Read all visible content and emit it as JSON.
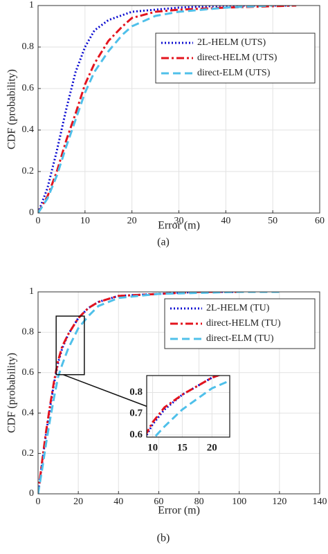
{
  "chart_data": [
    {
      "type": "line",
      "caption": "(a)",
      "xlabel": "Error (m)",
      "ylabel": "CDF (probability)",
      "xlim": [
        0,
        60
      ],
      "xticks": [
        0,
        10,
        20,
        30,
        40,
        50,
        60
      ],
      "ylim": [
        0,
        1
      ],
      "yticks": [
        0,
        0.2,
        0.4,
        0.6,
        0.8,
        1
      ],
      "grid": true,
      "legend": "upper right",
      "series": [
        {
          "name": "2L-HELM (UTS)",
          "color": "#0a0ad0",
          "style": "dotted",
          "x": [
            0,
            2,
            4,
            6,
            8,
            10,
            12,
            15,
            20,
            25,
            30,
            40,
            55
          ],
          "values": [
            0,
            0.12,
            0.3,
            0.5,
            0.68,
            0.8,
            0.88,
            0.93,
            0.97,
            0.98,
            0.99,
            1,
            1
          ]
        },
        {
          "name": "direct-HELM (UTS)",
          "color": "#e3141e",
          "style": "dashdot",
          "x": [
            0,
            2,
            4,
            6,
            8,
            10,
            12,
            15,
            18,
            20,
            25,
            30,
            40,
            55
          ],
          "values": [
            0,
            0.08,
            0.2,
            0.35,
            0.48,
            0.62,
            0.72,
            0.83,
            0.9,
            0.94,
            0.97,
            0.98,
            0.99,
            1
          ]
        },
        {
          "name": "direct-ELM (UTS)",
          "color": "#4fc0ea",
          "style": "dashed",
          "x": [
            0,
            2,
            4,
            6,
            8,
            10,
            12,
            15,
            18,
            20,
            25,
            30,
            40,
            50
          ],
          "values": [
            0,
            0.07,
            0.18,
            0.32,
            0.45,
            0.58,
            0.68,
            0.78,
            0.86,
            0.9,
            0.95,
            0.97,
            0.99,
            1
          ]
        }
      ]
    },
    {
      "type": "line",
      "caption": "(b)",
      "xlabel": "Error (m)",
      "ylabel": "CDF (probability)",
      "xlim": [
        0,
        140
      ],
      "xticks": [
        0,
        20,
        40,
        60,
        80,
        100,
        120,
        140
      ],
      "ylim": [
        0,
        1
      ],
      "yticks": [
        0,
        0.2,
        0.4,
        0.6,
        0.8,
        1
      ],
      "grid": true,
      "legend": "upper right",
      "series": [
        {
          "name": "2L-HELM (TU)",
          "color": "#0a0ad0",
          "style": "dotted",
          "x": [
            0,
            2,
            4,
            6,
            8,
            10,
            12,
            15,
            20,
            25,
            30,
            40,
            60,
            80,
            100
          ],
          "values": [
            0,
            0.15,
            0.3,
            0.43,
            0.55,
            0.65,
            0.72,
            0.79,
            0.87,
            0.92,
            0.95,
            0.98,
            0.99,
            1,
            1
          ]
        },
        {
          "name": "direct-HELM (TU)",
          "color": "#e3141e",
          "style": "dashdot",
          "x": [
            0,
            2,
            4,
            6,
            8,
            10,
            12,
            15,
            20,
            25,
            30,
            40,
            60,
            80,
            100
          ],
          "values": [
            0,
            0.16,
            0.31,
            0.44,
            0.56,
            0.66,
            0.73,
            0.79,
            0.87,
            0.92,
            0.95,
            0.98,
            0.99,
            1,
            1
          ]
        },
        {
          "name": "direct-ELM (TU)",
          "color": "#4fc0ea",
          "style": "dashed",
          "x": [
            0,
            2,
            4,
            6,
            8,
            10,
            12,
            15,
            20,
            25,
            30,
            40,
            60,
            80,
            100,
            120
          ],
          "values": [
            0,
            0.12,
            0.25,
            0.37,
            0.48,
            0.58,
            0.64,
            0.72,
            0.82,
            0.88,
            0.93,
            0.97,
            0.99,
            0.995,
            1,
            1
          ]
        }
      ],
      "inset": {
        "xlim": [
          9,
          23
        ],
        "xticks": [
          10,
          15,
          20
        ],
        "ylim": [
          0.59,
          0.88
        ],
        "yticks": [
          0.6,
          0.7,
          0.8
        ]
      }
    }
  ]
}
